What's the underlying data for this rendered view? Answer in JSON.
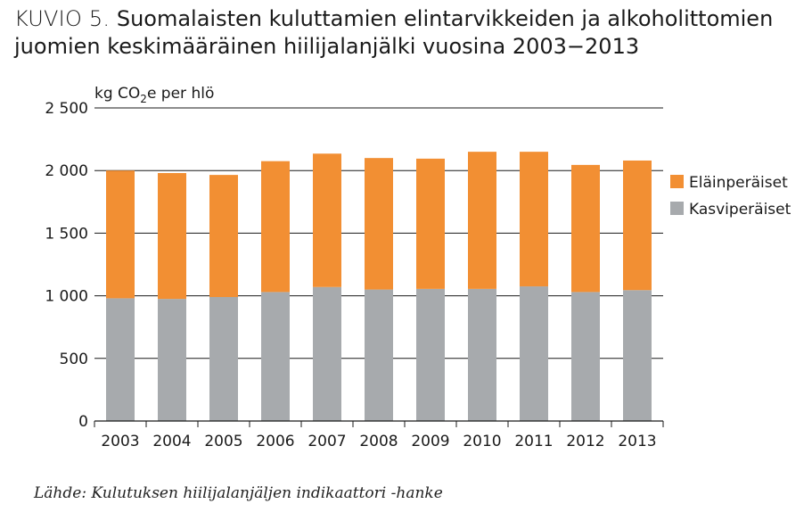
{
  "title": {
    "prefix": "KUVIO 5.",
    "text": "Suomalaisten kuluttamien elintarvikkeiden ja alkoholittomien juomien keskimääräinen hiilijalanjälki vuosina 2003−2013"
  },
  "source": "Lähde: Kulutuksen hiilijalanjäljen indikaattori -hanke",
  "colors": {
    "animal": "#f28f33",
    "plant": "#a7aaad",
    "gridline": "#1a1a1a"
  },
  "chart_data": {
    "type": "bar",
    "stacked": true,
    "title": "Suomalaisten kuluttamien elintarvikkeiden ja alkoholittomien juomien keskimääräinen hiilijalanjälki vuosina 2003−2013",
    "ylabel_main": "kg CO",
    "ylabel_sub": "2",
    "ylabel_tail": "e per hlö",
    "xlabel": "",
    "ylim": [
      0,
      2500
    ],
    "yticks": [
      0,
      500,
      1000,
      1500,
      2000,
      2500
    ],
    "ytick_labels": [
      "0",
      "500",
      "1 000",
      "1 500",
      "2 000",
      "2 500"
    ],
    "grid": "horizontal",
    "legend_position": "right",
    "categories": [
      "2003",
      "2004",
      "2005",
      "2006",
      "2007",
      "2008",
      "2009",
      "2010",
      "2011",
      "2012",
      "2013"
    ],
    "series": [
      {
        "name": "Kasviperäiset",
        "color": "#a7aaad",
        "values": [
          980,
          975,
          990,
          1030,
          1070,
          1050,
          1055,
          1055,
          1075,
          1030,
          1045
        ]
      },
      {
        "name": "Eläinperäiset",
        "color": "#f28f33",
        "values": [
          1020,
          1005,
          975,
          1045,
          1065,
          1050,
          1040,
          1095,
          1075,
          1015,
          1035
        ]
      }
    ],
    "legend": [
      {
        "name": "Eläinperäiset",
        "color": "#f28f33"
      },
      {
        "name": "Kasviperäiset",
        "color": "#a7aaad"
      }
    ]
  }
}
